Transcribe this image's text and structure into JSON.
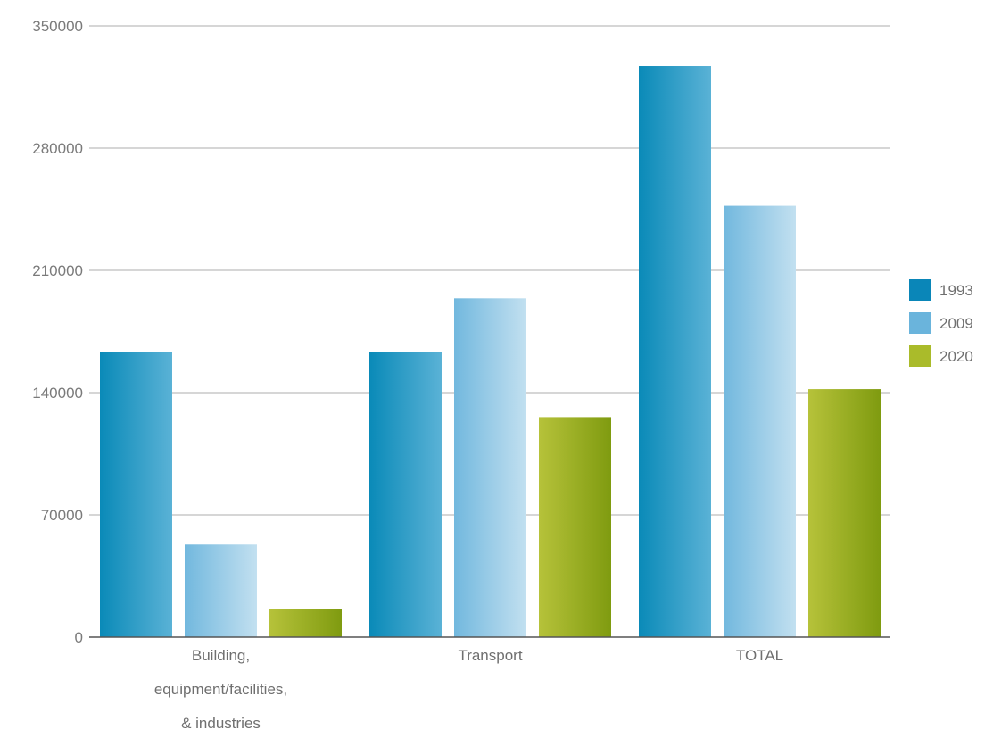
{
  "chart_data": {
    "type": "bar",
    "categories": [
      "Building,\nequipment/facilities,\n& industries",
      "Transport",
      "TOTAL"
    ],
    "series": [
      {
        "name": "1993",
        "values": [
          163000,
          163500,
          327000
        ]
      },
      {
        "name": "2009",
        "values": [
          53000,
          194000,
          247000
        ]
      },
      {
        "name": "2020",
        "values": [
          16000,
          126000,
          142000
        ]
      }
    ],
    "title": "",
    "xlabel": "",
    "ylabel": "",
    "ylim": [
      0,
      350000
    ],
    "yticks": [
      "0",
      "70000",
      "140000",
      "210000",
      "280000",
      "350000"
    ],
    "grid": true,
    "legend": "right",
    "colors": {
      "1993": [
        "#0a8ab8",
        "#5ab2d6"
      ],
      "2009": [
        "#72b8de",
        "#c2e0f0"
      ],
      "2020": [
        "#b6c23a",
        "#7f9b10"
      ],
      "legend_1993": "#0a86b8",
      "legend_2009": "#6ab4dc",
      "legend_2020": "#aabb2a",
      "grid": "#c8c8c8",
      "axis": "#555555"
    }
  }
}
